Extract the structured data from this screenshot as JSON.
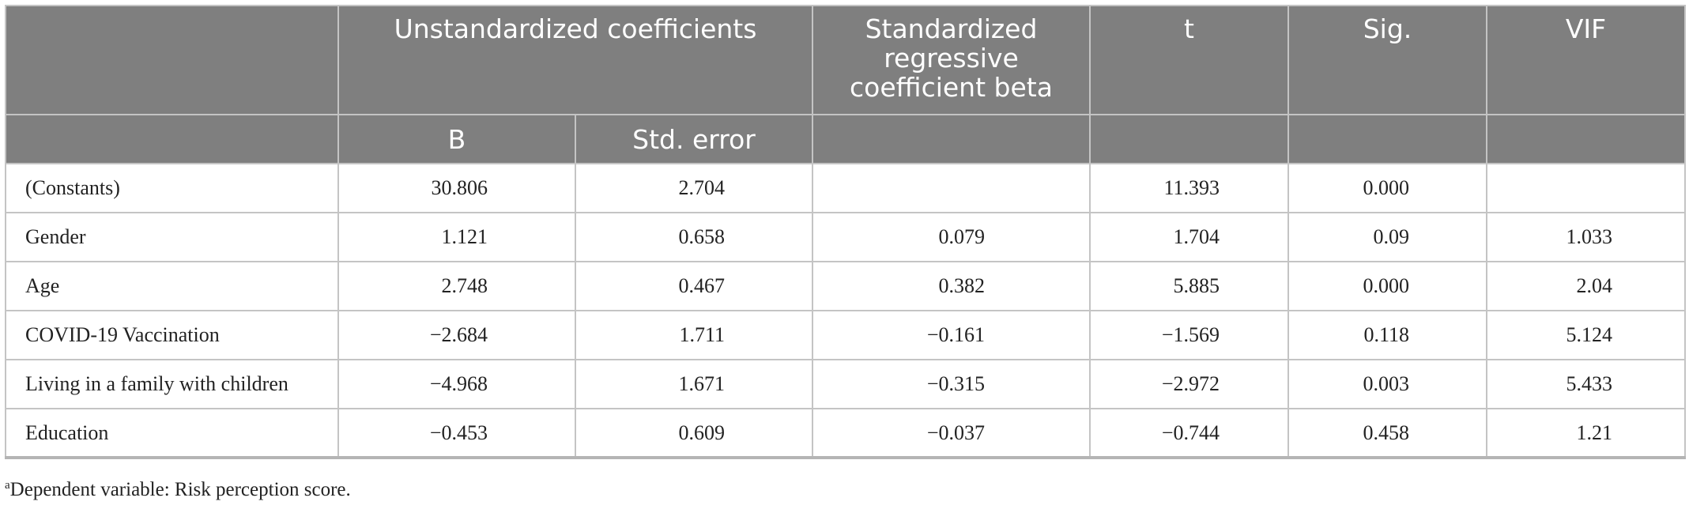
{
  "table": {
    "header_row1": {
      "unstandardized": "Unstandardized coefficients",
      "standardized": "Standardized regressive coefficient beta",
      "t": "t",
      "sig": "Sig.",
      "vif": "VIF"
    },
    "header_row2": {
      "b": "B",
      "std_error": "Std. error"
    },
    "rows": [
      {
        "label": "(Constants)",
        "b": "30.806",
        "se": "2.704",
        "beta": "",
        "t": "11.393",
        "sig": "0.000",
        "vif": ""
      },
      {
        "label": "Gender",
        "b": "1.121",
        "se": "0.658",
        "beta": "0.079",
        "t": "1.704",
        "sig": "0.09",
        "vif": "1.033"
      },
      {
        "label": "Age",
        "b": "2.748",
        "se": "0.467",
        "beta": "0.382",
        "t": "5.885",
        "sig": "0.000",
        "vif": "2.04"
      },
      {
        "label": "COVID-19 Vaccination",
        "b": "−2.684",
        "se": "1.711",
        "beta": "−0.161",
        "t": "−1.569",
        "sig": "0.118",
        "vif": "5.124"
      },
      {
        "label": "Living in a family with children",
        "b": "−4.968",
        "se": "1.671",
        "beta": "−0.315",
        "t": "−2.972",
        "sig": "0.003",
        "vif": "5.433"
      },
      {
        "label": "Education",
        "b": "−0.453",
        "se": "0.609",
        "beta": "−0.037",
        "t": "−0.744",
        "sig": "0.458",
        "vif": "1.21"
      }
    ]
  },
  "footnote": {
    "marker": "a",
    "text": "Dependent variable: Risk perception score."
  }
}
